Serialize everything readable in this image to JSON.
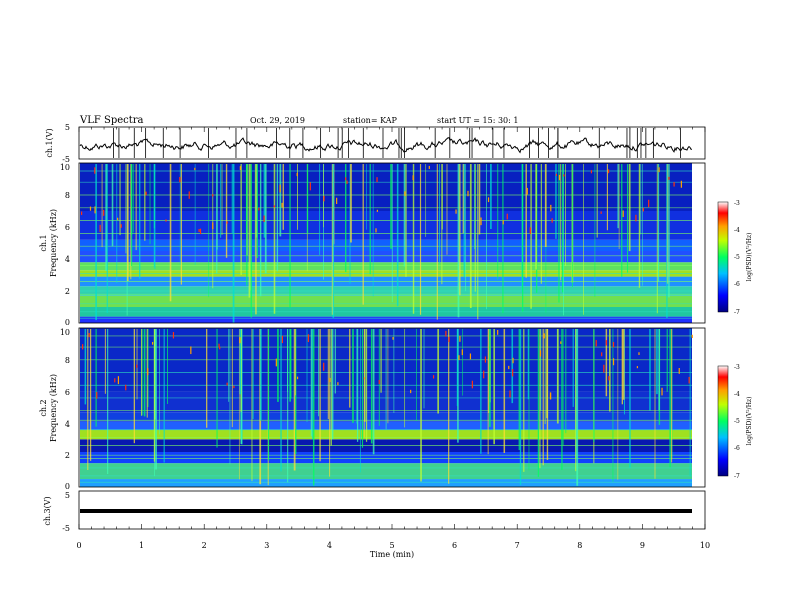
{
  "header": {
    "title": "VLF Spectra",
    "date": "Oct. 29, 2019",
    "station": "station= KAP",
    "start": "start  UT  =   15: 30: 1"
  },
  "chart_data": [
    {
      "type": "line",
      "panel": "ch1-waveform",
      "ylabel": "ch.1(V)",
      "ylim": [
        -5,
        5
      ],
      "yticks": [
        "5",
        "-5"
      ],
      "xlim": [
        0,
        10
      ]
    },
    {
      "type": "heatmap",
      "panel": "ch1-spectrogram",
      "ylabel_top": "ch.1",
      "ylabel": "Frequency  (kHz)",
      "ylim": [
        0,
        10
      ],
      "yticks": [
        "0",
        "2",
        "4",
        "6",
        "8",
        "10"
      ],
      "colorbar": {
        "label": "log(PSD)(V²/Hz)",
        "range": [
          -7,
          -3
        ],
        "ticks": [
          "-3",
          "-4",
          "-5",
          "-6",
          "-7"
        ]
      }
    },
    {
      "type": "heatmap",
      "panel": "ch2-spectrogram",
      "ylabel_top": "ch.2",
      "ylabel": "Frequency  (kHz)",
      "ylim": [
        0,
        10
      ],
      "yticks": [
        "0",
        "2",
        "4",
        "6",
        "8",
        "10"
      ],
      "colorbar": {
        "label": "log(PSD)(V²/Hz)",
        "range": [
          -7,
          -3
        ],
        "ticks": [
          "-3",
          "-4",
          "-5",
          "-6",
          "-7"
        ]
      }
    },
    {
      "type": "line",
      "panel": "ch3-waveform",
      "ylabel": "ch.3(V)",
      "ylim": [
        -5,
        5
      ],
      "yticks": [
        "5",
        "-5"
      ],
      "values": [
        0
      ],
      "xlabel": "Time  (min)",
      "xlim": [
        0,
        10
      ],
      "xticks": [
        "0",
        "1",
        "2",
        "3",
        "4",
        "5",
        "6",
        "7",
        "8",
        "9",
        "10"
      ]
    }
  ]
}
